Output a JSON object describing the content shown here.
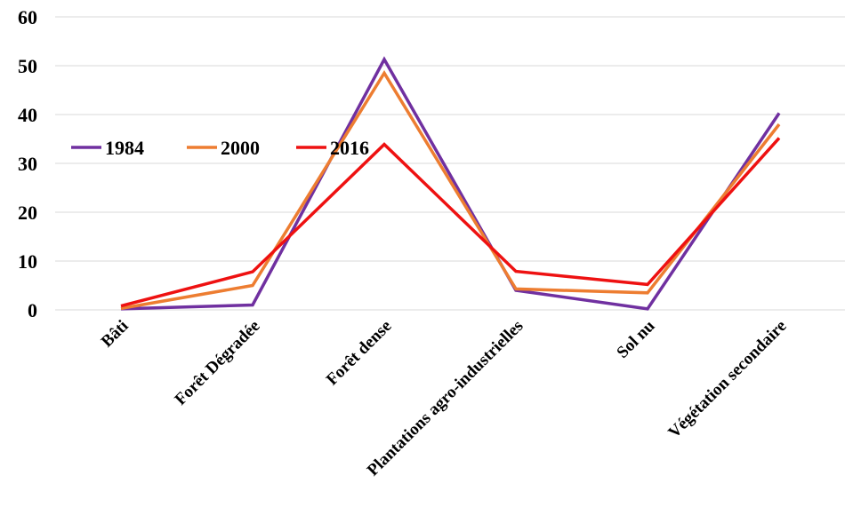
{
  "chart_data": {
    "type": "line",
    "title": "",
    "xlabel": "",
    "ylabel": "",
    "ylim": [
      0,
      60
    ],
    "yticks": [
      "0",
      "10",
      "20",
      "30",
      "40",
      "50",
      "60"
    ],
    "grid": true,
    "legend_position": "left",
    "categories": [
      "Bâti",
      "Forêt Dégradée",
      "Forêt dense",
      "Plantations agro-industrielles",
      "Sol nu",
      "Végétation secondaire"
    ],
    "series": [
      {
        "name": "1984",
        "color": "#7030a0",
        "values": [
          0.2,
          1.0,
          51.3,
          4.0,
          0.2,
          40.3
        ]
      },
      {
        "name": "2000",
        "color": "#ed7d31",
        "values": [
          0.3,
          5.0,
          48.5,
          4.3,
          3.5,
          38.0
        ]
      },
      {
        "name": "2016",
        "color": "#ee1111",
        "values": [
          0.8,
          7.8,
          33.9,
          7.9,
          5.2,
          35.2
        ]
      }
    ]
  }
}
